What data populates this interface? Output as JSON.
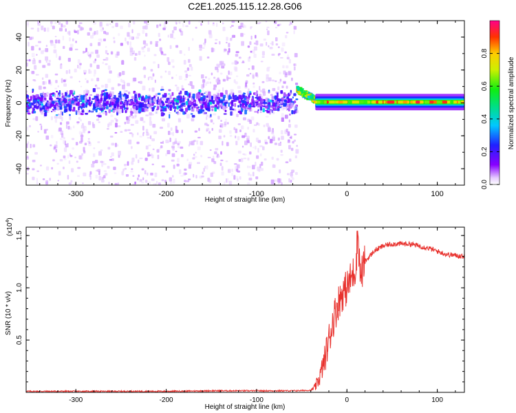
{
  "title": "C2E1.2025.115.12.28.G06",
  "colors": {
    "snr_line": "#e8322e",
    "axis": "#000000",
    "background": "#ffffff"
  },
  "chart_data": [
    {
      "type": "heatmap",
      "title": "C2E1.2025.115.12.28.G06",
      "xlabel": "Height of straight line (km)",
      "ylabel": "Frequency (Hz)",
      "xlim": [
        -355,
        130
      ],
      "ylim": [
        -50,
        50
      ],
      "x_ticks": [
        -300,
        -200,
        -100,
        0,
        100
      ],
      "y_ticks": [
        -40,
        -20,
        0,
        20,
        40
      ],
      "x_tick_labels": [
        "-300",
        "-200",
        "-100",
        "0",
        "100"
      ],
      "y_tick_labels": [
        "-40",
        "-20",
        "0",
        "20",
        "40"
      ],
      "colorbar": {
        "label": "Normalized spectral amplitude",
        "range": [
          0,
          1
        ],
        "ticks": [
          0.0,
          0.2,
          0.4,
          0.6,
          0.8
        ],
        "tick_labels": [
          "0.0",
          "0.2",
          "0.4",
          "0.6",
          "0.8"
        ]
      },
      "regions": [
        {
          "x_range": [
            -355,
            -55
          ],
          "frequency_center": 0,
          "core_halfwidth": 6,
          "spread_halfwidth": 50,
          "amplitude_range": [
            0.05,
            0.3
          ],
          "description_type": "noise"
        },
        {
          "x_range": [
            -55,
            -35
          ],
          "frequency_center_start": 8,
          "frequency_center_end": 2,
          "amplitude_range": [
            0.3,
            0.9
          ]
        },
        {
          "x_range": [
            -35,
            130
          ],
          "frequency_center": 0.5,
          "core_halfwidth": 2,
          "amplitude_range": [
            0.6,
            0.95
          ]
        }
      ]
    },
    {
      "type": "line",
      "xlabel": "Height of straight line (km)",
      "ylabel": "SNR (10 * v/v)",
      "y_multiplier": "(x10",
      "y_multiplier_exp": "4",
      "y_multiplier_close": ")",
      "xlim": [
        -355,
        130
      ],
      "ylim": [
        0,
        1.58
      ],
      "x_ticks": [
        -300,
        -200,
        -100,
        0,
        100
      ],
      "y_ticks": [
        0.5,
        1.0,
        1.5
      ],
      "x_tick_labels": [
        "-300",
        "-200",
        "-100",
        "0",
        "100"
      ],
      "y_tick_labels": [
        "0.5",
        "1.0",
        "1.5"
      ],
      "series": [
        {
          "x": [
            -355,
            -300,
            -250,
            -200,
            -150,
            -100,
            -60,
            -40,
            -35,
            -30,
            -25,
            -20,
            -15,
            -10,
            -5,
            0,
            5,
            10,
            12,
            15,
            20,
            30,
            40,
            50,
            60,
            70,
            80,
            90,
            100,
            110,
            120,
            130
          ],
          "y": [
            0.01,
            0.01,
            0.01,
            0.01,
            0.015,
            0.015,
            0.015,
            0.02,
            0.05,
            0.15,
            0.3,
            0.5,
            0.7,
            0.85,
            0.95,
            1.0,
            1.1,
            1.2,
            1.55,
            1.1,
            1.25,
            1.35,
            1.4,
            1.42,
            1.42,
            1.42,
            1.4,
            1.38,
            1.35,
            1.32,
            1.31,
            1.3
          ]
        }
      ]
    }
  ]
}
